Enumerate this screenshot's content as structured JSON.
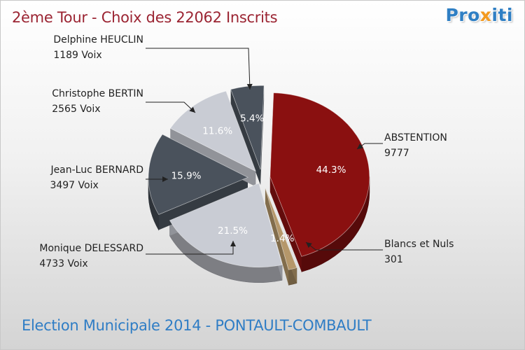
{
  "header": {
    "title": "2ème Tour - Choix des 22062 Inscrits",
    "logo_part1": "Pro",
    "logo_part2": "x",
    "logo_part3": "iti"
  },
  "footer": {
    "text": "Election Municipale 2014 - PONTAULT-COMBAULT"
  },
  "chart_data": {
    "type": "pie",
    "title": "2ème Tour - Choix des 22062 Inscrits",
    "slices": [
      {
        "name": "ABSTENTION",
        "value": 9777,
        "value_label": "9777",
        "percent": 44.3,
        "percent_label": "44.3%",
        "color": "#8a1010"
      },
      {
        "name": "Blancs et Nuls",
        "value": 301,
        "value_label": "301",
        "percent": 1.4,
        "percent_label": "1.4%",
        "color": "#b5976a"
      },
      {
        "name": "Monique DELESSARD",
        "value": 4733,
        "value_label": "4733 Voix",
        "percent": 21.5,
        "percent_label": "21.5%",
        "color": "#c9ccd4"
      },
      {
        "name": "Jean-Luc BERNARD",
        "value": 3497,
        "value_label": "3497 Voix",
        "percent": 15.9,
        "percent_label": "15.9%",
        "color": "#4a525c"
      },
      {
        "name": "Christophe BERTIN",
        "value": 2565,
        "value_label": "2565 Voix",
        "percent": 11.6,
        "percent_label": "11.6%",
        "color": "#c9ccd4"
      },
      {
        "name": "Delphine HEUCLIN",
        "value": 1189,
        "value_label": "1189 Voix",
        "percent": 5.4,
        "percent_label": "5.4%",
        "color": "#4a525c"
      }
    ]
  }
}
